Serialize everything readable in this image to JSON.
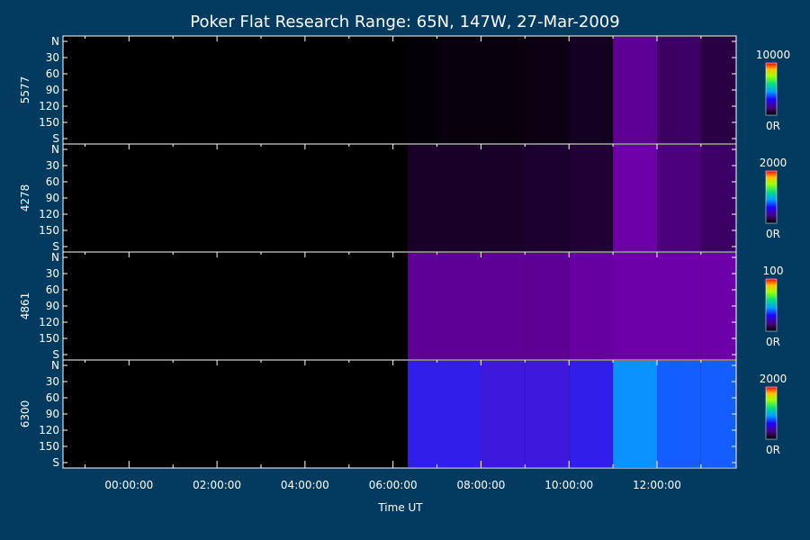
{
  "chart_data": {
    "type": "heatmap",
    "title": "Poker Flat Research Range: 65N, 147W, 27-Mar-2009",
    "xlabel": "Time UT",
    "x_ticks": [
      "00:00:00",
      "02:00:00",
      "04:00:00",
      "06:00:00",
      "08:00:00",
      "10:00:00",
      "12:00:00"
    ],
    "y_ticks": [
      "N",
      "30",
      "60",
      "90",
      "120",
      "150",
      "S"
    ],
    "colormap": [
      "#000000",
      "#3a0060",
      "#7a00b0",
      "#0000ff",
      "#00c8ff",
      "#00ff60",
      "#ffff00",
      "#ff8000",
      "#ff0000"
    ],
    "panels": [
      {
        "label": "5577",
        "scale_max": "10000",
        "scale_min": "0R",
        "data_start": "06:20:00",
        "intensity": [
          0,
          0,
          0,
          0,
          0,
          0,
          0.01,
          0.02,
          0.02,
          0.03,
          0.05,
          0.25,
          0.15,
          0.1
        ]
      },
      {
        "label": "4278",
        "scale_max": "2000",
        "scale_min": "0R",
        "data_start": "06:20:00",
        "intensity": [
          0,
          0,
          0,
          0,
          0,
          0,
          0.06,
          0.06,
          0.06,
          0.07,
          0.08,
          0.3,
          0.2,
          0.15
        ]
      },
      {
        "label": "4861",
        "scale_max": "100",
        "scale_min": "0R",
        "data_start": "06:20:00",
        "intensity": [
          0,
          0,
          0,
          0,
          0,
          0,
          0.25,
          0.25,
          0.25,
          0.25,
          0.28,
          0.3,
          0.3,
          0.3
        ]
      },
      {
        "label": "6300",
        "scale_max": "2000",
        "scale_min": "0R",
        "data_start": "06:20:00",
        "intensity": [
          0,
          0,
          0,
          0,
          0,
          0,
          0.45,
          0.45,
          0.42,
          0.42,
          0.45,
          0.6,
          0.55,
          0.55
        ]
      }
    ]
  }
}
